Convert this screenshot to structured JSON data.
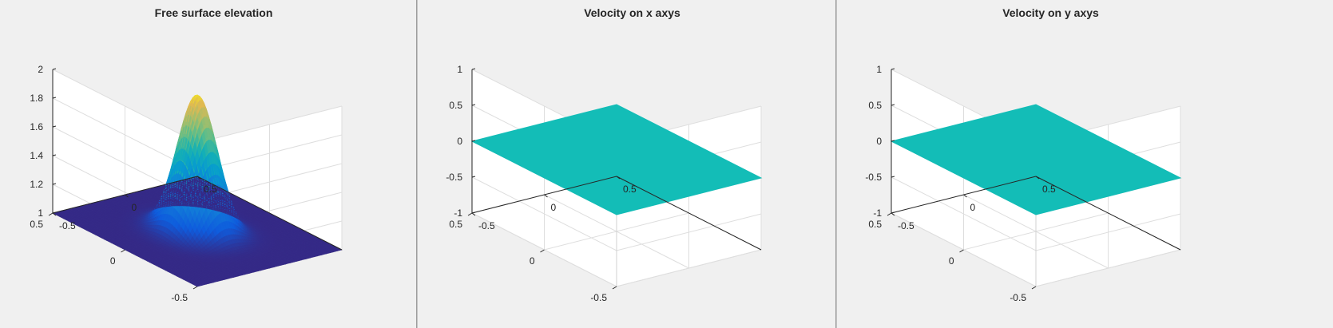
{
  "figure": {
    "panels": [
      {
        "title": "Free surface elevation",
        "z_ticks": [
          "1",
          "1.2",
          "1.4",
          "1.6",
          "1.8",
          "2"
        ],
        "x_ticks": [
          "-0.5",
          "0",
          "0.5"
        ],
        "y_ticks": [
          "-0.5",
          "0",
          "0.5"
        ]
      },
      {
        "title": "Velocity on x axys",
        "z_ticks": [
          "-1",
          "-0.5",
          "0",
          "0.5",
          "1"
        ],
        "x_ticks": [
          "-0.5",
          "0",
          "0.5"
        ],
        "y_ticks": [
          "-0.5",
          "0",
          "0.5"
        ]
      },
      {
        "title": "Velocity on y axys",
        "z_ticks": [
          "-1",
          "-0.5",
          "0",
          "0.5",
          "1"
        ],
        "x_ticks": [
          "-0.5",
          "0",
          "0.5"
        ],
        "y_ticks": [
          "-0.5",
          "0",
          "0.5"
        ]
      }
    ]
  },
  "chart_data": [
    {
      "type": "surface",
      "title": "Free surface elevation",
      "xlabel": "",
      "ylabel": "",
      "zlabel": "",
      "xlim": [
        -0.5,
        0.5
      ],
      "ylim": [
        -0.5,
        0.5
      ],
      "zlim": [
        1,
        2
      ],
      "z_ticks": [
        1,
        1.2,
        1.4,
        1.6,
        1.8,
        2
      ],
      "x_ticks": [
        -0.5,
        0,
        0.5
      ],
      "y_ticks": [
        -0.5,
        0,
        0.5
      ],
      "grid": "on",
      "colormap": "parula",
      "surface": {
        "shape": "gaussian",
        "base": 1.0,
        "peak": 1.95,
        "center": [
          0,
          0
        ],
        "sigma": 0.1
      }
    },
    {
      "type": "surface",
      "title": "Velocity on x axys",
      "xlabel": "",
      "ylabel": "",
      "zlabel": "",
      "xlim": [
        -0.5,
        0.5
      ],
      "ylim": [
        -0.5,
        0.5
      ],
      "zlim": [
        -1,
        1
      ],
      "z_ticks": [
        -1,
        -0.5,
        0,
        0.5,
        1
      ],
      "x_ticks": [
        -0.5,
        0,
        0.5
      ],
      "y_ticks": [
        -0.5,
        0,
        0.5
      ],
      "grid": "on",
      "surface": {
        "shape": "flat",
        "value": 0,
        "color": "#13bdb7"
      }
    },
    {
      "type": "surface",
      "title": "Velocity on y axys",
      "xlabel": "",
      "ylabel": "",
      "zlabel": "",
      "xlim": [
        -0.5,
        0.5
      ],
      "ylim": [
        -0.5,
        0.5
      ],
      "zlim": [
        -1,
        1
      ],
      "z_ticks": [
        -1,
        -0.5,
        0,
        0.5,
        1
      ],
      "x_ticks": [
        -0.5,
        0,
        0.5
      ],
      "y_ticks": [
        -0.5,
        0,
        0.5
      ],
      "grid": "on",
      "surface": {
        "shape": "flat",
        "value": 0,
        "color": "#13bdb7"
      }
    }
  ]
}
